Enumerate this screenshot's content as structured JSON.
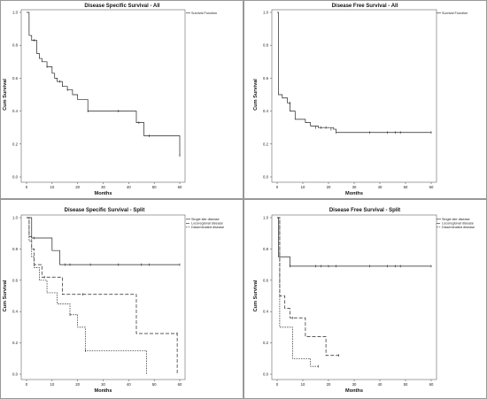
{
  "chart_data": [
    {
      "type": "line",
      "title": "Disease Specific Survival - All",
      "xlabel": "Months",
      "ylabel": "Cum Survival",
      "xlim": [
        0,
        60
      ],
      "ylim": [
        0,
        1.0
      ],
      "xticks": [
        "0",
        "10",
        "20",
        "30",
        "40",
        "50",
        "60"
      ],
      "yticks": [
        "0.0",
        "0.2",
        "0.4",
        "0.6",
        "0.8",
        "1.0"
      ],
      "legend_position": "top-right",
      "series": [
        {
          "name": "Survival Function",
          "dash": "solid",
          "x": [
            0,
            1,
            2,
            4,
            5,
            6,
            8,
            10,
            11,
            12,
            14,
            16,
            18,
            20,
            24,
            43,
            46,
            60
          ],
          "y": [
            1.0,
            0.86,
            0.83,
            0.75,
            0.72,
            0.7,
            0.67,
            0.63,
            0.6,
            0.58,
            0.55,
            0.53,
            0.5,
            0.47,
            0.4,
            0.33,
            0.25,
            0.13
          ],
          "censor_x": [
            3,
            8,
            13,
            16,
            24,
            36,
            44,
            48,
            60
          ],
          "censor_y": [
            0.83,
            0.67,
            0.58,
            0.53,
            0.4,
            0.4,
            0.33,
            0.25,
            0.13
          ]
        }
      ]
    },
    {
      "type": "line",
      "title": "Disease Free Survival - All",
      "xlabel": "Months",
      "ylabel": "Cum Survival",
      "xlim": [
        0,
        60
      ],
      "ylim": [
        0,
        1.0
      ],
      "xticks": [
        "0",
        "10",
        "20",
        "30",
        "40",
        "50",
        "60"
      ],
      "yticks": [
        "0.0",
        "0.2",
        "0.4",
        "0.6",
        "0.8",
        "1.0"
      ],
      "legend_position": "top-right",
      "series": [
        {
          "name": "Survival Function",
          "dash": "solid",
          "x": [
            0,
            0.5,
            2,
            4,
            5,
            7,
            11,
            13,
            16,
            22,
            23,
            60
          ],
          "y": [
            1.0,
            0.5,
            0.48,
            0.45,
            0.4,
            0.35,
            0.33,
            0.31,
            0.3,
            0.29,
            0.27,
            0.27
          ],
          "censor_x": [
            5,
            15,
            17,
            19,
            21,
            23,
            36,
            43,
            46,
            48,
            60
          ],
          "censor_y": [
            0.45,
            0.3,
            0.3,
            0.3,
            0.29,
            0.27,
            0.27,
            0.27,
            0.27,
            0.27,
            0.27
          ]
        }
      ]
    },
    {
      "type": "line",
      "title": "Disease Specific Survival - Split",
      "xlabel": "Months",
      "ylabel": "Cum Survival",
      "xlim": [
        0,
        60
      ],
      "ylim": [
        0,
        1.0
      ],
      "xticks": [
        "0",
        "10",
        "20",
        "30",
        "40",
        "50",
        "60"
      ],
      "yticks": [
        "0.0",
        "0.2",
        "0.4",
        "0.6",
        "0.8",
        "1.0"
      ],
      "legend_position": "top-right",
      "series": [
        {
          "name": "Single site disease",
          "dash": "solid",
          "x": [
            0,
            2,
            10,
            13,
            60
          ],
          "y": [
            1.0,
            0.87,
            0.79,
            0.7,
            0.7
          ],
          "censor_x": [
            3,
            15,
            17,
            25,
            36,
            45,
            48,
            60
          ],
          "censor_y": [
            0.87,
            0.7,
            0.7,
            0.7,
            0.7,
            0.7,
            0.7,
            0.7
          ]
        },
        {
          "name": "Locoregional disease",
          "dash": "long-dash",
          "x": [
            0,
            1,
            2,
            3,
            6,
            14,
            43,
            59
          ],
          "y": [
            1.0,
            0.88,
            0.8,
            0.7,
            0.62,
            0.51,
            0.26,
            0.0
          ],
          "censor_x": [
            7,
            22,
            59
          ],
          "censor_y": [
            0.62,
            0.51,
            0.26
          ]
        },
        {
          "name": "Disseminated disease",
          "dash": "short-dash",
          "x": [
            0,
            1,
            2,
            3,
            5,
            8,
            12,
            17,
            20,
            23,
            47
          ],
          "y": [
            1.0,
            0.85,
            0.75,
            0.68,
            0.6,
            0.52,
            0.45,
            0.38,
            0.3,
            0.15,
            0.0
          ],
          "censor_x": [
            17,
            23
          ],
          "censor_y": [
            0.38,
            0.15
          ]
        }
      ]
    },
    {
      "type": "line",
      "title": "Disease Free Survival - Split",
      "xlabel": "Months",
      "ylabel": "Cum Survival",
      "xlim": [
        0,
        60
      ],
      "ylim": [
        0,
        1.0
      ],
      "xticks": [
        "0",
        "10",
        "20",
        "30",
        "40",
        "50",
        "60"
      ],
      "yticks": [
        "0.0",
        "0.2",
        "0.4",
        "0.6",
        "0.8",
        "1.0"
      ],
      "legend_position": "top-right",
      "series": [
        {
          "name": "Single site disease",
          "dash": "solid",
          "x": [
            0,
            0.5,
            5,
            60
          ],
          "y": [
            1.0,
            0.75,
            0.69,
            0.69
          ],
          "censor_x": [
            5,
            15,
            17,
            20,
            23,
            36,
            43,
            46,
            48,
            60
          ],
          "censor_y": [
            0.69,
            0.69,
            0.69,
            0.69,
            0.69,
            0.69,
            0.69,
            0.69,
            0.69,
            0.69
          ]
        },
        {
          "name": "Locoregional disease",
          "dash": "long-dash",
          "x": [
            0,
            1,
            3,
            5,
            11,
            19,
            24
          ],
          "y": [
            1.0,
            0.5,
            0.42,
            0.36,
            0.24,
            0.12,
            0.12
          ],
          "censor_x": [
            6,
            24
          ],
          "censor_y": [
            0.36,
            0.12
          ]
        },
        {
          "name": "Disseminated disease",
          "dash": "short-dash",
          "x": [
            0,
            1,
            6,
            13,
            16
          ],
          "y": [
            1.0,
            0.3,
            0.1,
            0.05,
            0.05
          ],
          "censor_x": [
            16
          ],
          "censor_y": [
            0.05
          ]
        }
      ]
    }
  ]
}
